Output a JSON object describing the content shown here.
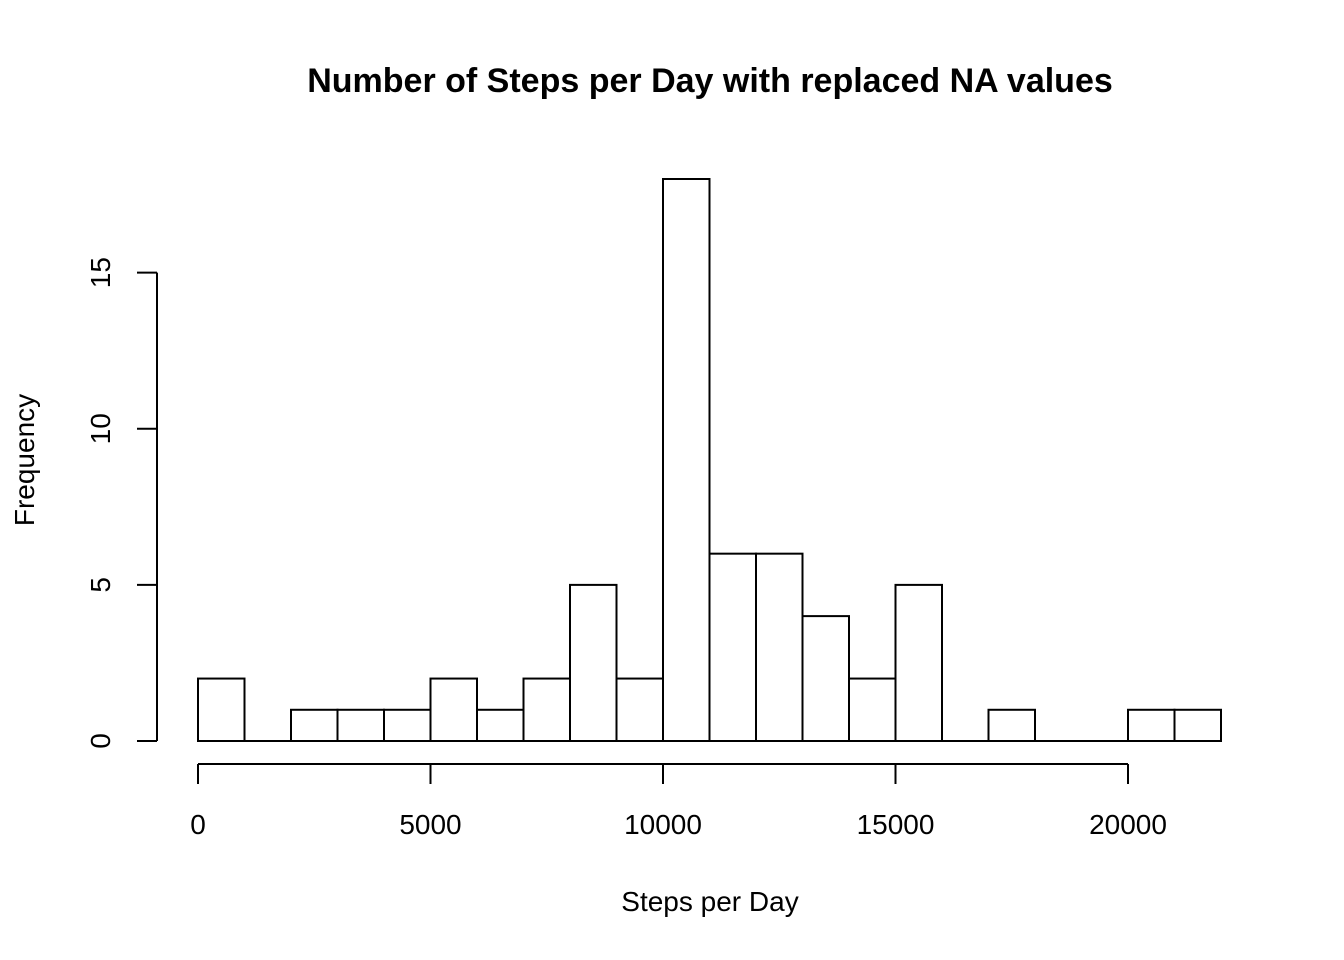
{
  "chart_data": {
    "type": "bar",
    "title": "Number of Steps per Day with replaced NA values",
    "xlabel": "Steps per Day",
    "ylabel": "Frequency",
    "bin_width": 1000,
    "bins": [
      {
        "start": 0,
        "end": 1000,
        "count": 2
      },
      {
        "start": 1000,
        "end": 2000,
        "count": 0
      },
      {
        "start": 2000,
        "end": 3000,
        "count": 1
      },
      {
        "start": 3000,
        "end": 4000,
        "count": 1
      },
      {
        "start": 4000,
        "end": 5000,
        "count": 1
      },
      {
        "start": 5000,
        "end": 6000,
        "count": 2
      },
      {
        "start": 6000,
        "end": 7000,
        "count": 1
      },
      {
        "start": 7000,
        "end": 8000,
        "count": 2
      },
      {
        "start": 8000,
        "end": 9000,
        "count": 5
      },
      {
        "start": 9000,
        "end": 10000,
        "count": 2
      },
      {
        "start": 10000,
        "end": 11000,
        "count": 18
      },
      {
        "start": 11000,
        "end": 12000,
        "count": 6
      },
      {
        "start": 12000,
        "end": 13000,
        "count": 6
      },
      {
        "start": 13000,
        "end": 14000,
        "count": 4
      },
      {
        "start": 14000,
        "end": 15000,
        "count": 2
      },
      {
        "start": 15000,
        "end": 16000,
        "count": 5
      },
      {
        "start": 16000,
        "end": 17000,
        "count": 0
      },
      {
        "start": 17000,
        "end": 18000,
        "count": 1
      },
      {
        "start": 18000,
        "end": 19000,
        "count": 0
      },
      {
        "start": 19000,
        "end": 20000,
        "count": 0
      },
      {
        "start": 20000,
        "end": 21000,
        "count": 1
      },
      {
        "start": 21000,
        "end": 22000,
        "count": 1
      }
    ],
    "xlim": [
      0,
      22000
    ],
    "ylim": [
      0,
      18
    ],
    "x_ticks": [
      0,
      5000,
      10000,
      15000,
      20000
    ],
    "x_tick_labels": [
      "0",
      "5000",
      "10000",
      "15000",
      "20000"
    ],
    "y_ticks": [
      0,
      5,
      10,
      15
    ],
    "y_tick_labels": [
      "0",
      "5",
      "10",
      "15"
    ],
    "grid": false,
    "bar_fill": "#ffffff",
    "bar_stroke": "#000000"
  }
}
